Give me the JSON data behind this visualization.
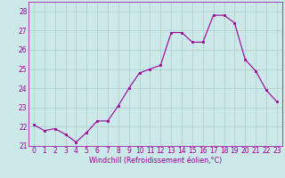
{
  "x": [
    0,
    1,
    2,
    3,
    4,
    5,
    6,
    7,
    8,
    9,
    10,
    11,
    12,
    13,
    14,
    15,
    16,
    17,
    18,
    19,
    20,
    21,
    22,
    23
  ],
  "y": [
    22.1,
    21.8,
    21.9,
    21.6,
    21.2,
    21.7,
    22.3,
    22.3,
    23.1,
    24.0,
    24.8,
    25.0,
    25.2,
    26.9,
    26.9,
    26.4,
    26.4,
    27.8,
    27.8,
    27.4,
    25.5,
    24.9,
    23.9,
    23.3
  ],
  "line_color": "#990099",
  "marker_color": "#990099",
  "bg_color": "#cce8e8",
  "grid_color": "#aacccc",
  "xlabel": "Windchill (Refroidissement éolien,°C)",
  "xlabel_color": "#990099",
  "tick_color": "#990099",
  "ylim": [
    21.0,
    28.5
  ],
  "xlim": [
    -0.5,
    23.5
  ],
  "yticks": [
    21,
    22,
    23,
    24,
    25,
    26,
    27,
    28
  ],
  "xticks": [
    0,
    1,
    2,
    3,
    4,
    5,
    6,
    7,
    8,
    9,
    10,
    11,
    12,
    13,
    14,
    15,
    16,
    17,
    18,
    19,
    20,
    21,
    22,
    23
  ],
  "font_size": 5.5,
  "label_font_size": 5.8
}
